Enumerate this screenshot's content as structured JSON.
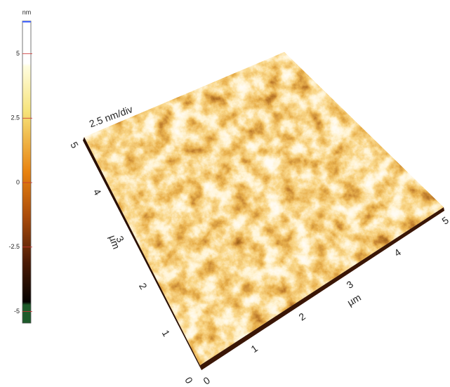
{
  "colorbar": {
    "unit": "nm",
    "ticks": [
      5,
      2.5,
      0,
      -2.5,
      -5
    ]
  },
  "z_scale": "2.5 nm/div",
  "y_axis": {
    "unit": "µm",
    "ticks": [
      0,
      1,
      2,
      3,
      4,
      5
    ]
  },
  "x_axis": {
    "unit": "µm",
    "ticks": [
      0,
      1,
      2,
      3,
      4,
      5
    ]
  }
}
